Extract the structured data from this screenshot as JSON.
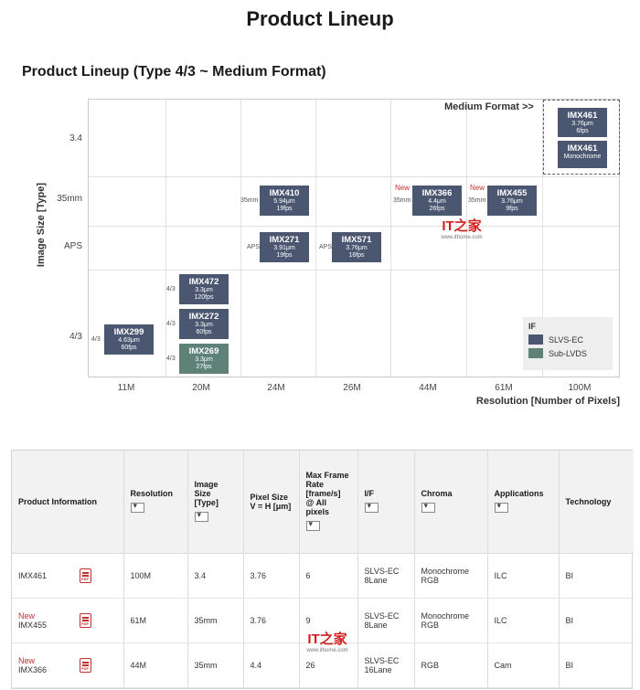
{
  "page_title": "Product Lineup",
  "section_title": "Product Lineup (Type 4/3 ~ Medium Format)",
  "chart_data": {
    "type": "scatter",
    "title": "Product Lineup (Type 4/3 ~ Medium Format)",
    "xlabel": "Resolution [Number of Pixels]",
    "ylabel": "Image Size [Type]",
    "x_categories": [
      "11M",
      "20M",
      "24M",
      "26M",
      "44M",
      "61M",
      "100M"
    ],
    "y_categories": [
      "3.4",
      "35mm",
      "APS",
      "4/3"
    ],
    "medium_format_label": "Medium Format >>",
    "legend_title": "IF",
    "legend": [
      {
        "name": "SLVS-EC",
        "color": "#4b5670"
      },
      {
        "name": "Sub-LVDS",
        "color": "#5e8277"
      }
    ],
    "sensors": [
      {
        "name": "IMX461",
        "detail1": "3.76μm",
        "detail2": "6fps",
        "x": "100M",
        "y": "3.4",
        "interface": "SLVS-EC",
        "tag": "",
        "new": ""
      },
      {
        "name": "IMX461",
        "detail1": "Monochrome",
        "detail2": "",
        "x": "100M",
        "y": "3.4",
        "interface": "SLVS-EC",
        "tag": "",
        "new": ""
      },
      {
        "name": "IMX410",
        "detail1": "5.94μm",
        "detail2": "19fps",
        "x": "24M",
        "y": "35mm",
        "interface": "SLVS-EC",
        "tag": "35mm",
        "new": ""
      },
      {
        "name": "IMX366",
        "detail1": "4.4μm",
        "detail2": "26fps",
        "x": "44M",
        "y": "35mm",
        "interface": "SLVS-EC",
        "tag": "35mm",
        "new": "New"
      },
      {
        "name": "IMX455",
        "detail1": "3.76μm",
        "detail2": "9fps",
        "x": "61M",
        "y": "35mm",
        "interface": "SLVS-EC",
        "tag": "35mm",
        "new": "New"
      },
      {
        "name": "IMX271",
        "detail1": "3.91μm",
        "detail2": "19fps",
        "x": "24M",
        "y": "APS",
        "interface": "SLVS-EC",
        "tag": "APS",
        "new": ""
      },
      {
        "name": "IMX571",
        "detail1": "3.76μm",
        "detail2": "16fps",
        "x": "26M",
        "y": "APS",
        "interface": "SLVS-EC",
        "tag": "APS",
        "new": ""
      },
      {
        "name": "IMX472",
        "detail1": "3.3μm",
        "detail2": "120fps",
        "x": "20M",
        "y": "4/3",
        "interface": "SLVS-EC",
        "tag": "4/3",
        "new": ""
      },
      {
        "name": "IMX272",
        "detail1": "3.3μm",
        "detail2": "60fps",
        "x": "20M",
        "y": "4/3",
        "interface": "SLVS-EC",
        "tag": "4/3",
        "new": ""
      },
      {
        "name": "IMX269",
        "detail1": "3.3μm",
        "detail2": "27fps",
        "x": "20M",
        "y": "4/3",
        "interface": "Sub-LVDS",
        "tag": "4/3",
        "new": ""
      },
      {
        "name": "IMX299",
        "detail1": "4.63μm",
        "detail2": "60fps",
        "x": "11M",
        "y": "4/3",
        "interface": "SLVS-EC",
        "tag": "4/3",
        "new": ""
      }
    ]
  },
  "watermark": {
    "logo": "IT之家",
    "url": "www.ithome.com"
  },
  "table": {
    "headers": {
      "product": "Product Information",
      "resolution": "Resolution",
      "image_size": "Image Size [Type]",
      "pixel_size": "Pixel Size V = H [μm]",
      "frame_rate": "Max Frame Rate [frame/s] @ All pixels",
      "if": "I/F",
      "chroma": "Chroma",
      "applications": "Applications",
      "technology": "Technology"
    },
    "rows": [
      {
        "new": "",
        "name": "IMX461",
        "resolution": "100M",
        "size": "3.4",
        "pixel": "3.76",
        "fps": "6",
        "if1": "SLVS-EC",
        "if2": "8Lane",
        "chroma1": "Monochrome",
        "chroma2": "RGB",
        "app": "ILC",
        "tech": "BI"
      },
      {
        "new": "New",
        "name": "IMX455",
        "resolution": "61M",
        "size": "35mm",
        "pixel": "3.76",
        "fps": "9",
        "if1": "SLVS-EC",
        "if2": "8Lane",
        "chroma1": "Monochrome",
        "chroma2": "RGB",
        "app": "ILC",
        "tech": "BI"
      },
      {
        "new": "New",
        "name": "IMX366",
        "resolution": "44M",
        "size": "35mm",
        "pixel": "4.4",
        "fps": "26",
        "if1": "SLVS-EC",
        "if2": "16Lane",
        "chroma1": "RGB",
        "chroma2": "",
        "app": "Cam",
        "tech": "BI"
      }
    ]
  }
}
